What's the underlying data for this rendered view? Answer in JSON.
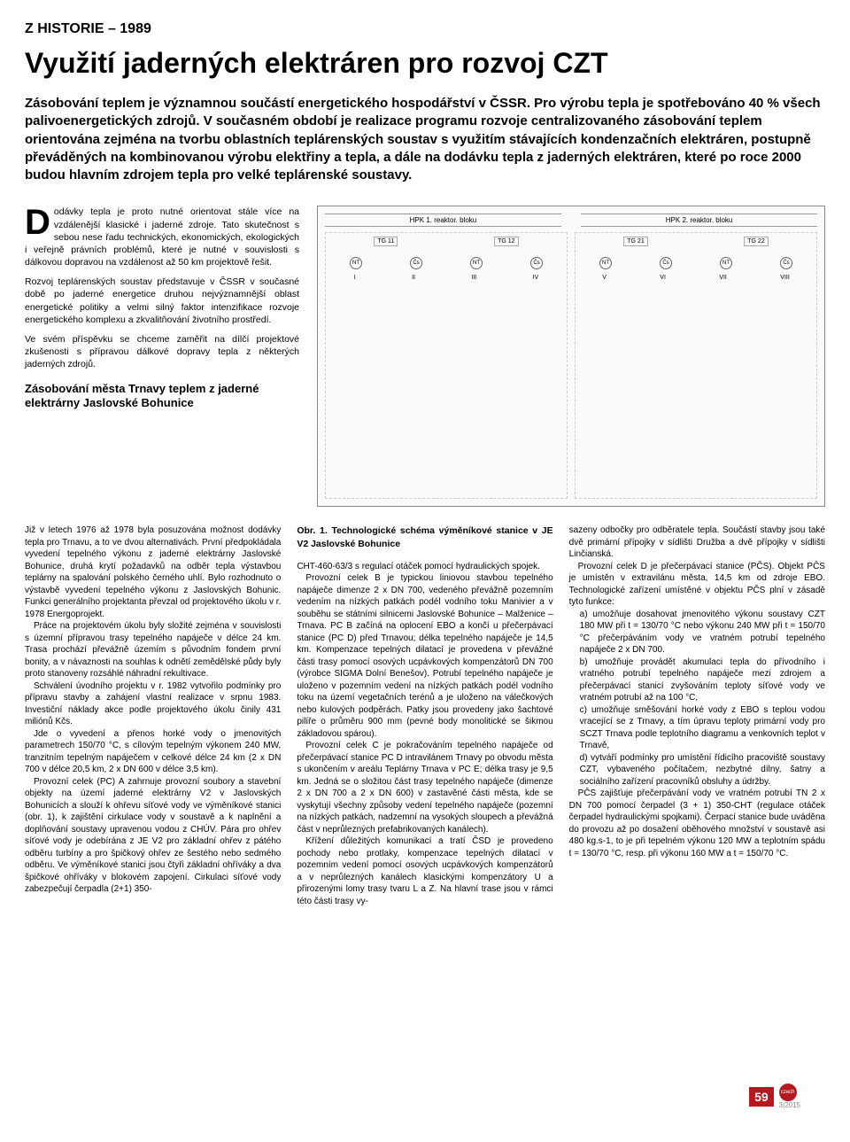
{
  "header": {
    "section_label": "Z HISTORIE – 1989",
    "title": "Využití jaderných elektráren pro rozvoj CZT",
    "lead": "Zásobování teplem je významnou součástí energetického hospodářství v ČSSR. Pro výrobu tepla je spotřebováno 40 % všech palivoenergetických zdrojů. V současném období je realizace programu rozvoje centralizovaného zásobování teplem orientována zejména na tvorbu oblastních teplárenských soustav s využitím stávajících kondenzačních elektráren, postupně převáděných na kombinovanou výrobu elektřiny a tepla, a dále na dodávku tepla z jaderných elektráren, které po roce 2000 budou hlavním zdrojem tepla pro velké teplárenské soustavy."
  },
  "intro": {
    "p1": "Dodávky tepla je proto nutné orientovat stále více na vzdálenější klasické i jaderné zdroje. Tato skutečnost s sebou nese řadu technických, ekonomických, ekologických i veřejně právních problémů, které je nutné v souvislosti s dálkovou dopravou na vzdálenost až 50 km projektově řešit.",
    "p2": "Rozvoj teplárenských soustav představuje v ČSSR v současné době po jaderné energetice druhou nejvýznamnější oblast energetické politiky a velmi silný faktor intenzifikace rozvoje energetického komplexu a zkvalitňování životního prostředí.",
    "p3": "Ve svém příspěvku se chceme zaměřit na dílčí projektové zkušenosti s přípravou dálkové dopravy tepla z některých jaderných zdrojů."
  },
  "figure": {
    "left_title": "HPK 1. reaktor. bloku",
    "right_title": "HPK 2. reaktor. bloku",
    "tg_left": [
      "TG 11",
      "TG 12"
    ],
    "tg_right": [
      "TG 21",
      "TG 22"
    ],
    "roman_left": [
      "I",
      "II",
      "III",
      "IV"
    ],
    "roman_right": [
      "V",
      "VI",
      "VII",
      "VIII"
    ],
    "caption": "Obr. 1. Technologické schéma výměníkové stanice v JE V2 Jaslovské Bohunice"
  },
  "subsection": {
    "title": "Zásobování města Trnavy teplem z jaderné elektrárny Jaslovské Bohunice"
  },
  "col1": {
    "p1": "Již v letech 1976 až 1978 byla posuzována možnost dodávky tepla pro Trnavu, a to ve dvou alternativách. První předpokládala vyvedení tepelného výkonu z jaderné elektrárny Jaslovské Bohunice, druhá krytí požadavků na odběr tepla výstavbou teplárny na spalování polského černého uhlí. Bylo rozhodnuto o výstavbě vyvedení tepelného výkonu z Jaslovských Bohunic. Funkci generálního projektanta převzal od projektového úkolu v r. 1978 Energoprojekt.",
    "p2": "Práce na projektovém úkolu byly složité zejména v souvislosti s územní přípravou trasy tepelného napáječe v délce 24 km. Trasa prochází převážně územím s původním fondem první bonity, a v návaznosti na souhlas k odnětí zemědělské půdy byly proto stanoveny rozsáhlé náhradní rekultivace.",
    "p3": "Schválení úvodního projektu v r. 1982 vytvořilo podmínky pro přípravu stavby a zahájení vlastní realizace v srpnu 1983. Investiční náklady akce podle projektového úkolu činily 431 miliónů Kčs.",
    "p4": "Jde o vyvedení a přenos horké vody o jmenovitých parametrech 150/70 °C, s cílovým tepelným výkonem 240 MW, tranzitním tepelným napáječem v celkové délce 24 km (2 x DN 700 v délce 20,5 km, 2 x DN 600 v délce 3,5 km).",
    "p5": "Provozní celek (PC) A zahrnuje provozní soubory a stavební objekty na území jaderné elektrárny V2 v Jaslovských Bohunicích a slouží k ohřevu síťové vody ve výměníkové stanici (obr. 1), k zajištění cirkulace vody v soustavě a k naplnění a doplňování soustavy upravenou vodou z CHÚV. Pára pro ohřev síťové vody je odebírána z JE V2 pro základní ohřev z pátého odběru turbíny a pro špičkový ohřev ze šestého nebo sedmého odběru. Ve výměníkové stanici jsou čtyři základní ohříváky a dva špičkové ohříváky v blokovém zapojení. Cirkulaci síťové vody zabezpečují čerpadla (2+1) 350-"
  },
  "col2": {
    "p1": "CHT-460-63/3 s regulací otáček pomocí hydraulických spojek.",
    "p2": "Provozní celek B je typickou liniovou stavbou tepelného napáječe dimenze 2 x DN 700, vedeného převážně pozemním vedením na nízkých patkách podél vodního toku Manivier a v souběhu se státními silnicemi Jaslovské Bohunice – Malženice – Trnava. PC B začíná na oplocení EBO a končí u přečerpávací stanice (PC D) před Trnavou; délka tepelného napáječe je 14,5 km. Kompenzace tepelných dilatací je provedena v převážné části trasy pomocí osových ucpávkových kompenzátorů DN 700 (výrobce SIGMA Dolní Benešov). Potrubí tepelného napáječe je uloženo v pozemním vedení na nízkých patkách podél vodního toku na území vegetačních terénů a je uloženo na válečkových nebo kulových podpěrách. Patky jsou provedeny jako šachtové pilíře o průměru 900 mm (pevné body monolitické se šikmou základovou spárou).",
    "p3": "Provozní celek C je pokračováním tepelného napáječe od přečerpávací stanice PC D intravilánem Trnavy po obvodu města s ukončením v areálu Teplárny Trnava v PC E; délka trasy je 9,5 km. Jedná se o složitou část trasy tepelného napáječe (dimenze 2 x DN 700 a 2 x DN 600) v zastavěné části města, kde se vyskytují všechny způsoby vedení tepelného napáječe (pozemní na nízkých patkách, nadzemní na vysokých sloupech a převážná část v neprůlezných prefabrikovaných kanálech).",
    "p4": "Křížení důležitých komunikací a tratí ČSD je provedeno pochody nebo protlaky, kompenzace tepelných dilatací v pozemním vedení pomocí osových ucpávkových kompenzátorů a v neprůlezných kanálech klasickými kompenzátory U a přirozenými lomy trasy tvaru L a Z. Na hlavní trase jsou v rámci této části trasy vy-"
  },
  "col3": {
    "p1": "sazeny odbočky pro odběratele tepla. Součástí stavby jsou také dvě primární přípojky v sídlišti Družba a dvě přípojky v sídlišti Linčianská.",
    "p2": "Provozní celek D je přečerpávací stanice (PČS). Objekt PČS je umístěn v extravilánu města, 14,5 km od zdroje EBO. Technologické zařízení umístěné v objektu PČS plní v zásadě tyto funkce:",
    "li_a": "a) umožňuje dosahovat jmenovitého výkonu soustavy CZT 180 MW při t = 130/70 °C nebo výkonu 240 MW při t = 150/70 °C přečerpáváním vody ve vratném potrubí tepelného napáječe 2 x DN 700.",
    "li_b": "b) umožňuje provádět akumulaci tepla do přívodního i vratného potrubí tepelného napáječe mezi zdrojem a přečerpávací stanicí zvyšováním teploty síťové vody ve vratném potrubí až na 100 °C,",
    "li_c": "c) umožňuje směšování horké vody z EBO s teplou vodou vracející se z Trnavy, a tím úpravu teploty primární vody pro SCZT Trnava podle teplotního diagramu a venkovních teplot v Trnavě,",
    "li_d": "d) vytváří podmínky pro umístění řídicího pracoviště soustavy CZT, vybaveného počítačem, nezbytné dílny, šatny a sociálního zařízení pracovníků obsluhy a údržby.",
    "p3": "PČS zajišťuje přečerpávání vody ve vratném potrubí TN 2 x DN 700 pomocí čerpadel (3 + 1) 350-CHT (regulace otáček čerpadel hydraulickými spojkami). Čerpací stanice bude uváděna do provozu až po dosažení oběhového množství v soustavě asi 480 kg.s-1, to je při tepelném výkonu 120 MW a teplotním spádu t = 130/70 °C, resp. při výkonu 160 MW a t = 150/70 °C."
  },
  "footer": {
    "page_number": "59",
    "issue": "3|2015",
    "logo": "czech"
  },
  "colors": {
    "accent": "#b5181e",
    "text": "#000000",
    "bg": "#ffffff"
  }
}
